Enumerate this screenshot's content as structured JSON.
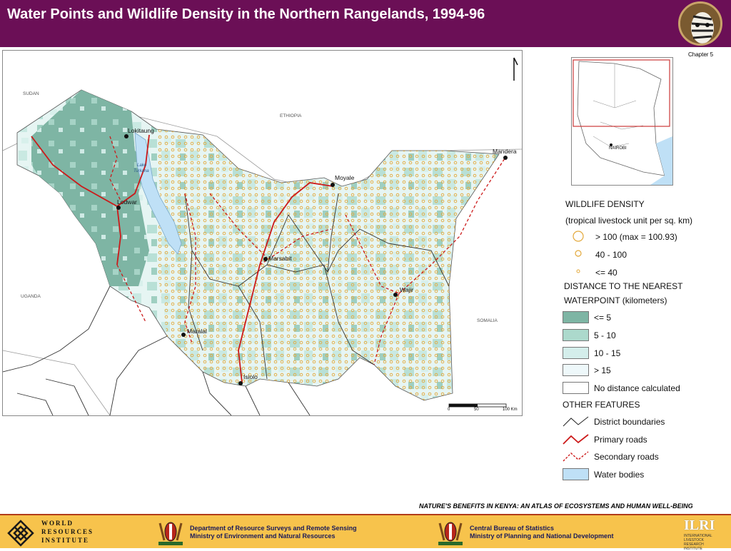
{
  "header": {
    "title": "Water Points and Wildlife Density in the Northern Rangelands, 1994-96"
  },
  "chapter": "Chapter 5",
  "map": {
    "country_labels": [
      "SUDAN",
      "ETHIOPIA",
      "UGANDA",
      "SOMALIA"
    ],
    "lake_label_1": "Lake",
    "lake_label_2": "Turkana",
    "towns": [
      "Lokitaung",
      "Lodwar",
      "Moyale",
      "Mandera",
      "Marsabit",
      "Wajir",
      "Maralal",
      "Isiolo"
    ],
    "scale_labels": [
      "0",
      "50",
      "100 Km"
    ]
  },
  "inset": {
    "label": "NAIROBI"
  },
  "legend": {
    "wildlife_title": "WILDLIFE DENSITY",
    "wildlife_unit": "(tropical livestock unit per sq. km)",
    "density_classes": [
      "> 100 (max = 100.93)",
      "40 - 100",
      "<= 40"
    ],
    "distance_title_1": "DISTANCE TO THE NEAREST",
    "distance_title_2": "WATERPOINT (kilometers)",
    "distance_classes": [
      {
        "label": "<= 5",
        "color": "#7eb5a4"
      },
      {
        "label": "5 - 10",
        "color": "#acd9cc"
      },
      {
        "label": "10 - 15",
        "color": "#d4eeeb"
      },
      {
        "label": "> 15",
        "color": "#eef8fa"
      },
      {
        "label": "No distance calculated",
        "color": "#ffffff"
      }
    ],
    "other_title": "OTHER FEATURES",
    "other_items": [
      "District boundaries",
      "Primary roads",
      "Secondary roads",
      "Water bodies"
    ]
  },
  "footnote": "NATURE'S BENEFITS IN KENYA: AN ATLAS OF ECOSYSTEMS AND HUMAN WELL-BEING",
  "footer": {
    "wri": [
      "WORLD",
      "RESOURCES",
      "INSTITUTE"
    ],
    "dept1_line1": "Department of Resource Surveys and Remote Sensing",
    "dept1_line2": "Ministry of Environment and Natural Resources",
    "dept2_line1": "Central Bureau of Statistics",
    "dept2_line2": "Ministry of Planning and National Development",
    "ilri": "ILRI",
    "ilri_sub1": "INTERNATIONAL",
    "ilri_sub2": "LIVESTOCK RESEARCH",
    "ilri_sub3": "INSTITUTE"
  },
  "colors": {
    "header": "#6b0f56",
    "primary_road": "#cc1a1a",
    "secondary_road": "#cc1a1a",
    "water": "#bfe0f6",
    "dots": "#e3a83a"
  }
}
